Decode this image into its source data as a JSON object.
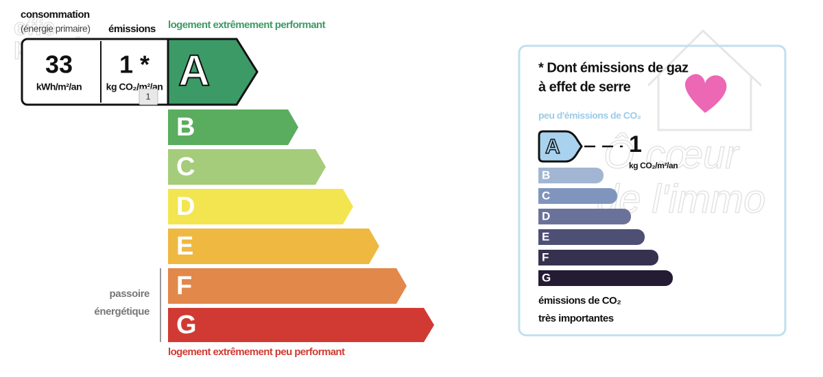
{
  "watermarks": [
    "effe",
    "proprio",
    "Ô cœur",
    "de l'immo"
  ],
  "energy_label": {
    "consumption_header": "consommation",
    "consumption_subheader": "(énergie primaire)",
    "emissions_header": "émissions",
    "consumption_value": "33",
    "consumption_unit": "kWh/m²/an",
    "emissions_value": "1 *",
    "emissions_unit": "kg CO₂/m²/an",
    "top_caption": "logement extrêmement performant",
    "classes": [
      "A",
      "B",
      "C",
      "D",
      "E",
      "F",
      "G"
    ],
    "side_caption": [
      "passoire",
      "énergétique"
    ],
    "bottom_caption": "logement extrêmement peu performant",
    "tooltip": "1"
  },
  "ghg_panel": {
    "title": [
      "* Dont émissions de gaz",
      "à effet de serre"
    ],
    "top_caption": "peu d'émissions de CO₂",
    "classes": [
      "A",
      "B",
      "C",
      "D",
      "E",
      "F",
      "G"
    ],
    "value": "1",
    "unit": "kg CO₂/m²/an",
    "bottom_caption": [
      "émissions de CO₂",
      "très importantes"
    ]
  }
}
